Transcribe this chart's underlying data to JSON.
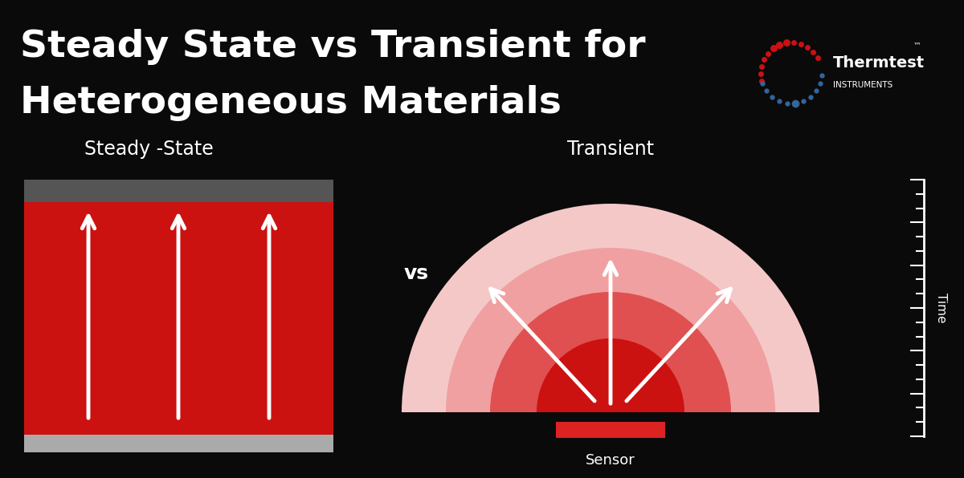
{
  "bg_color": "#0a0a0a",
  "title_line1": "Steady State vs Transient for",
  "title_line2": "Heterogeneous Materials",
  "title_color": "#ffffff",
  "label_steady": "Steady -State",
  "label_transient": "Transient",
  "label_vs": "vs",
  "label_sensor": "Sensor",
  "label_time": "Time",
  "label_color": "#ffffff",
  "red_dark": "#cc1111",
  "red_medium": "#e05050",
  "red_light": "#f0a0a0",
  "red_lightest": "#f5c8c8",
  "gray_dark": "#555555",
  "gray_light": "#aaaaaa",
  "white": "#ffffff",
  "sensor_red": "#dd2222",
  "logo_red": "#cc1111",
  "logo_blue": "#336699"
}
